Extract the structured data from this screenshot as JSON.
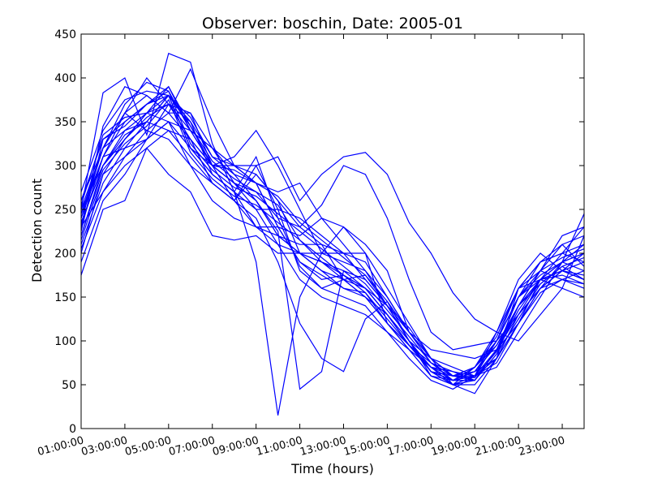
{
  "chart_data": {
    "type": "line",
    "title": "Observer: boschin, Date: 2005-01",
    "xlabel": "Time (hours)",
    "ylabel": "Detection count",
    "x_tick_labels": [
      "01:00:00",
      "03:00:00",
      "05:00:00",
      "07:00:00",
      "09:00:00",
      "11:00:00",
      "13:00:00",
      "15:00:00",
      "17:00:00",
      "19:00:00",
      "21:00:00",
      "23:00:00"
    ],
    "y_ticks": [
      0,
      50,
      100,
      150,
      200,
      250,
      300,
      350,
      400,
      450
    ],
    "xlim": [
      1,
      24
    ],
    "ylim": [
      0,
      450
    ],
    "grid": false,
    "line_color": "#0000ff",
    "x_hours": [
      1,
      2,
      3,
      4,
      5,
      6,
      7,
      8,
      9,
      10,
      11,
      12,
      13,
      14,
      15,
      16,
      17,
      18,
      19,
      20,
      21,
      22,
      23,
      24
    ],
    "series": [
      {
        "values": [
          250,
          383,
          400,
          335,
          428,
          418,
          325,
          270,
          310,
          240,
          185,
          160,
          170,
          175,
          140,
          100,
          60,
          50,
          60,
          75,
          120,
          170,
          200,
          230
        ]
      },
      {
        "values": [
          230,
          345,
          390,
          380,
          360,
          410,
          350,
          300,
          280,
          230,
          190,
          170,
          175,
          160,
          130,
          95,
          65,
          55,
          60,
          70,
          110,
          150,
          190,
          245
        ]
      },
      {
        "values": [
          240,
          310,
          360,
          400,
          370,
          360,
          300,
          280,
          260,
          220,
          200,
          180,
          170,
          150,
          120,
          90,
          70,
          60,
          65,
          80,
          120,
          160,
          180,
          200
        ]
      },
      {
        "values": [
          260,
          330,
          350,
          370,
          390,
          340,
          300,
          260,
          240,
          190,
          120,
          80,
          65,
          125,
          145,
          100,
          80,
          60,
          55,
          85,
          140,
          180,
          210,
          220
        ]
      },
      {
        "values": [
          220,
          300,
          340,
          360,
          380,
          350,
          290,
          270,
          230,
          230,
          190,
          175,
          160,
          155,
          120,
          95,
          75,
          65,
          55,
          90,
          150,
          190,
          200,
          190
        ]
      },
      {
        "values": [
          200,
          290,
          330,
          360,
          370,
          330,
          280,
          260,
          300,
          250,
          180,
          160,
          150,
          140,
          110,
          90,
          60,
          50,
          70,
          100,
          160,
          180,
          170,
          160
        ]
      },
      {
        "values": [
          210,
          280,
          320,
          350,
          380,
          320,
          290,
          270,
          250,
          210,
          170,
          150,
          140,
          130,
          110,
          80,
          55,
          45,
          60,
          110,
          170,
          200,
          180,
          170
        ]
      },
      {
        "values": [
          230,
          270,
          310,
          340,
          360,
          330,
          300,
          280,
          260,
          220,
          200,
          190,
          180,
          170,
          140,
          100,
          70,
          65,
          60,
          100,
          150,
          175,
          190,
          180
        ]
      },
      {
        "values": [
          250,
          300,
          330,
          360,
          350,
          340,
          320,
          300,
          280,
          270,
          280,
          240,
          210,
          180,
          150,
          110,
          75,
          60,
          65,
          95,
          140,
          170,
          160,
          150
        ]
      },
      {
        "values": [
          225,
          330,
          345,
          370,
          380,
          345,
          300,
          310,
          340,
          300,
          250,
          200,
          190,
          180,
          140,
          100,
          65,
          55,
          60,
          80,
          130,
          160,
          180,
          170
        ]
      },
      {
        "values": [
          240,
          320,
          340,
          350,
          340,
          310,
          280,
          260,
          230,
          220,
          210,
          210,
          170,
          160,
          130,
          95,
          70,
          50,
          55,
          90,
          140,
          180,
          220,
          230
        ]
      },
      {
        "values": [
          215,
          290,
          310,
          330,
          350,
          300,
          260,
          240,
          230,
          210,
          200,
          190,
          175,
          160,
          130,
          100,
          65,
          50,
          60,
          100,
          150,
          170,
          190,
          200
        ]
      },
      {
        "values": [
          175,
          250,
          260,
          320,
          290,
          270,
          220,
          215,
          220,
          200,
          200,
          200,
          200,
          200,
          160,
          120,
          80,
          50,
          40,
          80,
          160,
          170,
          175,
          165
        ]
      },
      {
        "values": [
          260,
          320,
          360,
          340,
          330,
          300,
          280,
          260,
          290,
          260,
          200,
          180,
          160,
          150,
          130,
          95,
          70,
          55,
          70,
          110,
          160,
          190,
          200,
          210
        ]
      },
      {
        "values": [
          245,
          310,
          320,
          330,
          350,
          320,
          300,
          295,
          280,
          230,
          220,
          240,
          230,
          210,
          180,
          110,
          90,
          85,
          80,
          90,
          120,
          160,
          190,
          210
        ]
      },
      {
        "values": [
          235,
          300,
          330,
          355,
          370,
          340,
          320,
          290,
          260,
          225,
          45,
          65,
          180,
          160,
          140,
          115,
          80,
          60,
          70,
          105,
          160,
          190,
          210,
          185
        ]
      },
      {
        "values": [
          205,
          270,
          300,
          320,
          340,
          330,
          300,
          300,
          300,
          310,
          260,
          290,
          310,
          315,
          290,
          235,
          200,
          155,
          125,
          110,
          100,
          130,
          160,
          220
        ]
      },
      {
        "values": [
          190,
          260,
          290,
          330,
          370,
          350,
          310,
          300,
          290,
          260,
          230,
          255,
          300,
          290,
          240,
          170,
          110,
          90,
          95,
          100,
          130,
          170,
          180,
          190
        ]
      },
      {
        "values": [
          245,
          320,
          360,
          380,
          360,
          360,
          320,
          280,
          250,
          250,
          240,
          220,
          200,
          190,
          150,
          110,
          80,
          70,
          60,
          90,
          140,
          170,
          180,
          175
        ]
      },
      {
        "values": [
          255,
          335,
          355,
          360,
          390,
          345,
          305,
          285,
          270,
          255,
          215,
          190,
          170,
          150,
          120,
          90,
          60,
          55,
          65,
          100,
          150,
          180,
          195,
          205
        ]
      },
      {
        "values": [
          235,
          300,
          335,
          350,
          380,
          320,
          290,
          270,
          190,
          15,
          150,
          200,
          230,
          200,
          120,
          95,
          65,
          60,
          70,
          95,
          140,
          165,
          185,
          195
        ]
      },
      {
        "values": [
          230,
          310,
          350,
          370,
          385,
          340,
          300,
          280,
          270,
          240,
          230,
          210,
          200,
          170,
          140,
          110,
          80,
          60,
          60,
          90,
          130,
          160,
          170,
          180
        ]
      },
      {
        "values": [
          250,
          320,
          370,
          395,
          385,
          325,
          295,
          275,
          265,
          245,
          225,
          205,
          185,
          165,
          135,
          105,
          75,
          55,
          55,
          85,
          125,
          165,
          185,
          170
        ]
      },
      {
        "values": [
          220,
          295,
          325,
          345,
          375,
          315,
          285,
          265,
          255,
          235,
          215,
          195,
          175,
          155,
          125,
          95,
          65,
          50,
          50,
          80,
          120,
          155,
          170,
          165
        ]
      },
      {
        "values": [
          270,
          340,
          375,
          385,
          380,
          355,
          310,
          290,
          280,
          265,
          235,
          215,
          195,
          175,
          145,
          110,
          80,
          60,
          58,
          88,
          135,
          170,
          190,
          200
        ]
      }
    ]
  }
}
